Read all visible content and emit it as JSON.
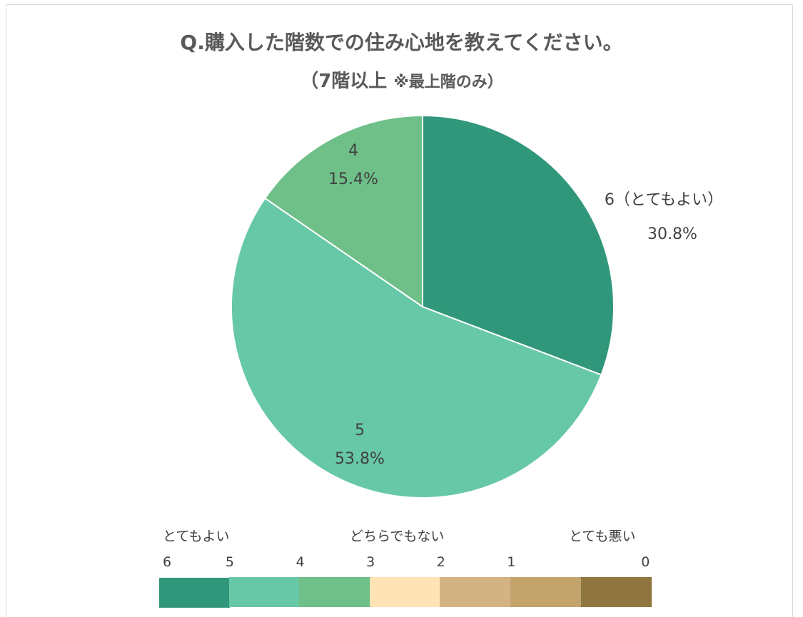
{
  "title": "Q.購入した階数での住み心地を教えてください。",
  "subtitle_main": "（7階以上",
  "subtitle_note": "※最上階のみ）",
  "chart_data": {
    "type": "pie",
    "title": "Q.購入した階数での住み心地を教えてください。",
    "subtitle": "（7階以上 ※最上階のみ）",
    "start_angle_deg": 0,
    "direction": "clockwise",
    "slices": [
      {
        "label": "6（とてもよい）",
        "value": 30.8,
        "pct_label": "30.8%",
        "color": "#31977a"
      },
      {
        "label": "5",
        "value": 53.8,
        "pct_label": "53.8%",
        "color": "#67c8a7"
      },
      {
        "label": "4",
        "value": 15.4,
        "pct_label": "15.4%",
        "color": "#6fbf88"
      }
    ]
  },
  "scale": {
    "left_label": "とてもよい",
    "mid_label": "どちらでもない",
    "right_label": "とても悪い",
    "items": [
      {
        "num": "6",
        "color": "#31977a"
      },
      {
        "num": "5",
        "color": "#67c8a7"
      },
      {
        "num": "4",
        "color": "#6fbf88"
      },
      {
        "num": "3",
        "color": "#fee4b5"
      },
      {
        "num": "2",
        "color": "#d4b383"
      },
      {
        "num": "1",
        "color": "#c2a46c"
      },
      {
        "num": "0",
        "color": "#8f7641"
      }
    ]
  }
}
